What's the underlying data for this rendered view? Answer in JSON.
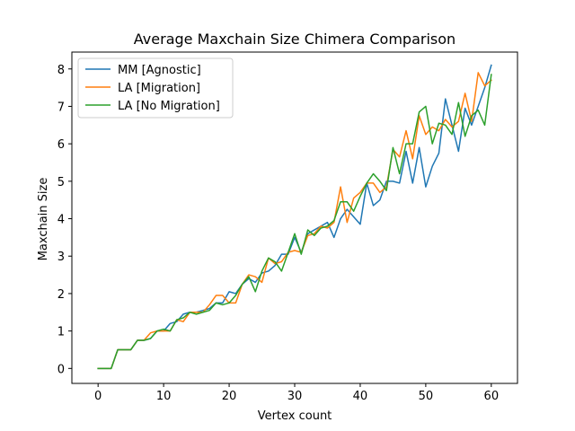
{
  "chart_data": {
    "type": "line",
    "title": "Average Maxchain Size Chimera Comparison",
    "xlabel": "Vertex count",
    "ylabel": "Maxchain Size",
    "xlim": [
      -4,
      64
    ],
    "ylim": [
      -0.4,
      8.45
    ],
    "xticks": [
      0,
      10,
      20,
      30,
      40,
      50,
      60
    ],
    "yticks": [
      0,
      1,
      2,
      3,
      4,
      5,
      6,
      7,
      8
    ],
    "grid": false,
    "legend_position": "top-left",
    "x": [
      0,
      1,
      2,
      3,
      4,
      5,
      6,
      7,
      8,
      9,
      10,
      11,
      12,
      13,
      14,
      15,
      16,
      17,
      18,
      19,
      20,
      21,
      22,
      23,
      24,
      25,
      26,
      27,
      28,
      29,
      30,
      31,
      32,
      33,
      34,
      35,
      36,
      37,
      38,
      39,
      40,
      41,
      42,
      43,
      44,
      45,
      46,
      47,
      48,
      49,
      50,
      51,
      52,
      53,
      54,
      55,
      56,
      57,
      58,
      59,
      60
    ],
    "series": [
      {
        "name": "MM [Agnostic]",
        "color": "#1f77b4",
        "values": [
          0,
          0,
          0,
          0.5,
          0.5,
          0.5,
          0.75,
          0.75,
          0.8,
          1.0,
          1.0,
          1.2,
          1.25,
          1.45,
          1.5,
          1.5,
          1.55,
          1.6,
          1.75,
          1.75,
          2.05,
          2.0,
          2.25,
          2.4,
          2.3,
          2.55,
          2.6,
          2.75,
          3.05,
          3.05,
          3.5,
          3.1,
          3.6,
          3.7,
          3.8,
          3.9,
          3.5,
          4.0,
          4.25,
          4.05,
          3.85,
          4.95,
          4.35,
          4.5,
          5.0,
          5.0,
          4.95,
          5.8,
          4.95,
          5.9,
          4.85,
          5.4,
          5.75,
          7.2,
          6.5,
          5.8,
          6.95,
          6.5,
          7.0,
          7.5,
          8.1
        ]
      },
      {
        "name": "LA [Migration]",
        "color": "#ff7f0e",
        "values": [
          0,
          0,
          0,
          0.5,
          0.5,
          0.5,
          0.75,
          0.75,
          0.95,
          1.0,
          1.0,
          1.0,
          1.3,
          1.25,
          1.5,
          1.5,
          1.5,
          1.7,
          1.95,
          1.95,
          1.75,
          1.75,
          2.25,
          2.5,
          2.45,
          2.3,
          2.95,
          2.8,
          2.85,
          3.1,
          3.15,
          3.1,
          3.55,
          3.6,
          3.8,
          3.75,
          3.9,
          4.85,
          3.9,
          4.55,
          4.7,
          4.95,
          4.95,
          4.7,
          4.85,
          5.85,
          5.65,
          6.35,
          5.6,
          6.75,
          6.25,
          6.45,
          6.35,
          6.65,
          6.45,
          6.6,
          7.35,
          6.6,
          7.9,
          7.55,
          7.7
        ]
      },
      {
        "name": "LA [No Migration]",
        "color": "#2ca02c",
        "values": [
          0,
          0,
          0,
          0.5,
          0.5,
          0.5,
          0.75,
          0.75,
          0.8,
          1.0,
          1.05,
          1.0,
          1.3,
          1.35,
          1.5,
          1.45,
          1.5,
          1.55,
          1.75,
          1.7,
          1.75,
          1.95,
          2.25,
          2.45,
          2.05,
          2.6,
          2.95,
          2.85,
          2.6,
          3.1,
          3.6,
          3.05,
          3.7,
          3.55,
          3.75,
          3.8,
          3.95,
          4.45,
          4.45,
          4.2,
          4.6,
          4.95,
          5.2,
          5.0,
          4.75,
          5.9,
          5.2,
          6.0,
          6.0,
          6.85,
          7.0,
          6.0,
          6.55,
          6.5,
          6.25,
          7.1,
          6.2,
          6.75,
          6.9,
          6.5,
          7.85
        ]
      }
    ]
  }
}
